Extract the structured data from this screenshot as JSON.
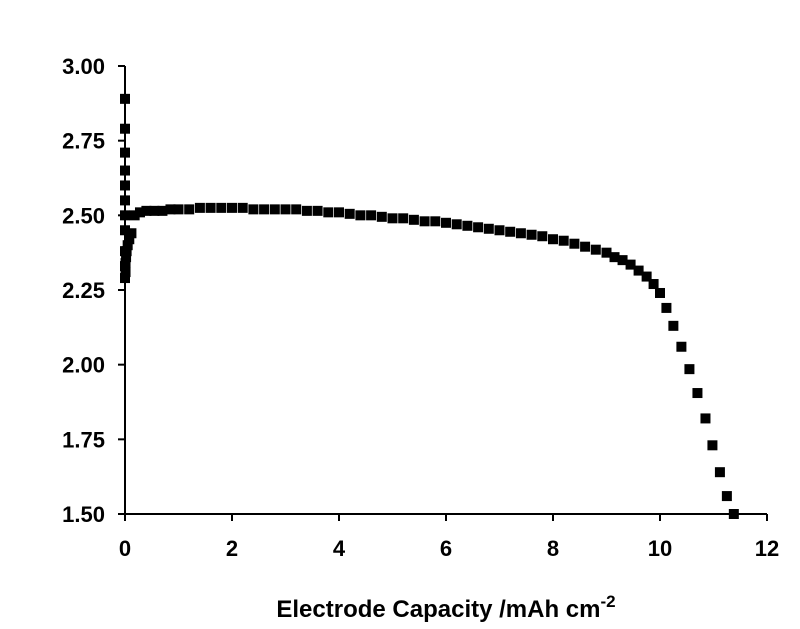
{
  "chart_data": {
    "type": "scatter",
    "title": "",
    "xlabel": "Electrode Capacity /mAh cm",
    "xlabel_superscript": "-2",
    "ylabel": "",
    "xlim": [
      0,
      12
    ],
    "ylim": [
      1.5,
      3.0
    ],
    "x_ticks": [
      "0",
      "2",
      "4",
      "6",
      "8",
      "10",
      "12"
    ],
    "y_ticks": [
      "1.50",
      "1.75",
      "2.00",
      "2.25",
      "2.50",
      "2.75",
      "3.00"
    ],
    "grid": false,
    "legend": "none",
    "marker": "square",
    "marker_color": "#000000",
    "series": [
      {
        "x": [
          0.0,
          0.0,
          0.0,
          0.0,
          0.0,
          0.0,
          0.0,
          0.0,
          0.0,
          0.0,
          0.0,
          0.01,
          0.01,
          0.02,
          0.03,
          0.05,
          0.08,
          0.12,
          0.18,
          0.28,
          0.4,
          0.55,
          0.7,
          0.85,
          1.0,
          1.2,
          1.4,
          1.6,
          1.8,
          2.0,
          2.2,
          2.4,
          2.6,
          2.8,
          3.0,
          3.2,
          3.4,
          3.6,
          3.8,
          4.0,
          4.2,
          4.4,
          4.6,
          4.8,
          5.0,
          5.2,
          5.4,
          5.6,
          5.8,
          6.0,
          6.2,
          6.4,
          6.6,
          6.8,
          7.0,
          7.2,
          7.4,
          7.6,
          7.8,
          8.0,
          8.2,
          8.4,
          8.6,
          8.8,
          9.0,
          9.15,
          9.3,
          9.45,
          9.6,
          9.75,
          9.88,
          10.0,
          10.12,
          10.25,
          10.4,
          10.55,
          10.7,
          10.85,
          10.98,
          11.12,
          11.25,
          11.38
        ],
        "y": [
          2.89,
          2.79,
          2.71,
          2.65,
          2.6,
          2.55,
          2.5,
          2.45,
          2.38,
          2.33,
          2.29,
          2.31,
          2.34,
          2.36,
          2.38,
          2.4,
          2.42,
          2.44,
          2.5,
          2.51,
          2.515,
          2.515,
          2.515,
          2.52,
          2.52,
          2.52,
          2.525,
          2.525,
          2.525,
          2.525,
          2.525,
          2.52,
          2.52,
          2.52,
          2.52,
          2.52,
          2.515,
          2.515,
          2.51,
          2.51,
          2.505,
          2.5,
          2.5,
          2.495,
          2.49,
          2.49,
          2.485,
          2.48,
          2.48,
          2.475,
          2.47,
          2.465,
          2.46,
          2.455,
          2.45,
          2.445,
          2.44,
          2.435,
          2.43,
          2.42,
          2.415,
          2.405,
          2.395,
          2.385,
          2.375,
          2.36,
          2.35,
          2.335,
          2.315,
          2.295,
          2.27,
          2.24,
          2.19,
          2.13,
          2.06,
          1.985,
          1.905,
          1.82,
          1.73,
          1.64,
          1.56,
          1.5
        ]
      }
    ]
  }
}
